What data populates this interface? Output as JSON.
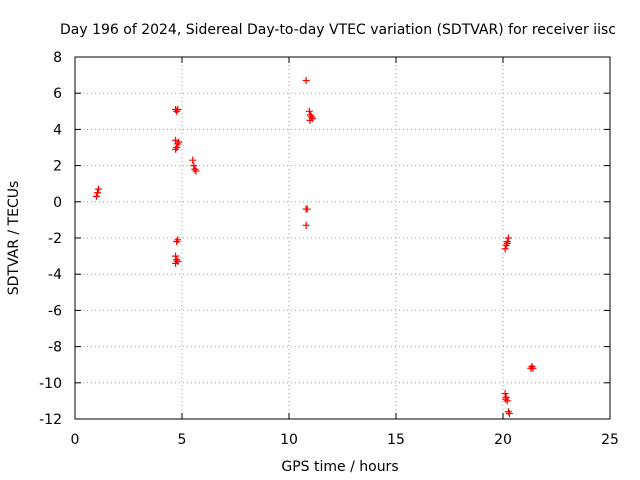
{
  "chart_data": {
    "type": "scatter",
    "title": "Day 196 of 2024, Sidereal Day-to-day VTEC variation (SDTVAR) for receiver iisc",
    "xlabel": "GPS time / hours",
    "ylabel": "SDTVAR / TECUs",
    "xlim": [
      0,
      25
    ],
    "ylim": [
      -12,
      8
    ],
    "x_ticks": [
      0,
      5,
      10,
      15,
      20,
      25
    ],
    "y_ticks": [
      -12,
      -10,
      -8,
      -6,
      -4,
      -2,
      0,
      2,
      4,
      6,
      8
    ],
    "grid": true,
    "marker": "+",
    "series": [
      {
        "name": "SDTVAR",
        "color": "#ff0000",
        "points": [
          [
            1.0,
            0.3
          ],
          [
            1.05,
            0.5
          ],
          [
            1.1,
            0.7
          ],
          [
            4.7,
            5.1
          ],
          [
            4.8,
            5.1
          ],
          [
            4.75,
            5.0
          ],
          [
            4.7,
            3.4
          ],
          [
            4.8,
            3.2
          ],
          [
            4.75,
            3.0
          ],
          [
            4.85,
            3.3
          ],
          [
            4.7,
            2.9
          ],
          [
            4.75,
            -2.2
          ],
          [
            4.8,
            -2.1
          ],
          [
            4.7,
            -3.0
          ],
          [
            4.75,
            -3.2
          ],
          [
            4.8,
            -3.3
          ],
          [
            4.7,
            -3.4
          ],
          [
            5.5,
            2.3
          ],
          [
            5.55,
            2.0
          ],
          [
            5.6,
            1.8
          ],
          [
            5.65,
            1.7
          ],
          [
            10.8,
            6.7
          ],
          [
            10.8,
            -0.4
          ],
          [
            10.85,
            -0.4
          ],
          [
            10.8,
            -1.3
          ],
          [
            10.95,
            5.0
          ],
          [
            11.0,
            4.8
          ],
          [
            11.05,
            4.7
          ],
          [
            11.1,
            4.6
          ],
          [
            10.98,
            4.5
          ],
          [
            20.1,
            -2.6
          ],
          [
            20.15,
            -2.4
          ],
          [
            20.2,
            -2.2
          ],
          [
            20.25,
            -2.0
          ],
          [
            20.2,
            -2.3
          ],
          [
            20.1,
            -10.6
          ],
          [
            20.15,
            -10.8
          ],
          [
            20.2,
            -11.0
          ],
          [
            20.12,
            -10.9
          ],
          [
            20.25,
            -11.6
          ],
          [
            20.3,
            -11.7
          ],
          [
            21.3,
            -9.2
          ],
          [
            21.35,
            -9.1
          ],
          [
            21.4,
            -9.2
          ]
        ]
      }
    ]
  }
}
